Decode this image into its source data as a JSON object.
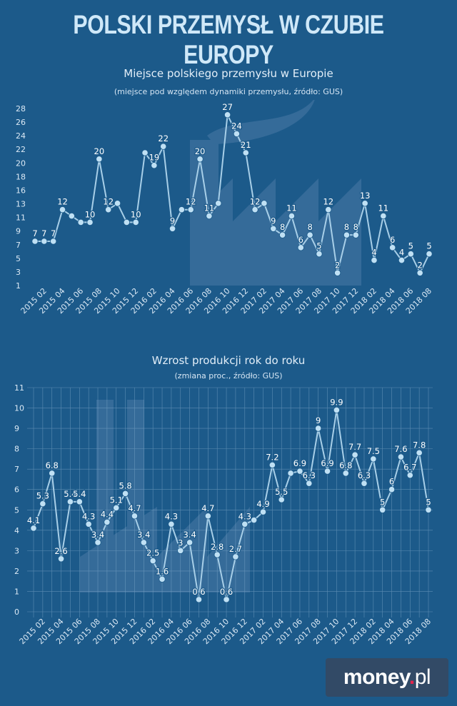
{
  "headline": "POLSKI PRZEMYSŁ W CZUBIE EUROPY",
  "brand": {
    "name": "money",
    "dot": ".",
    "tld": "pl"
  },
  "colors": {
    "background": "#1c5a8a",
    "line": "#a8cfe8",
    "marker": "#bfe0f4",
    "watermark": "#4a7aa6"
  },
  "chart_data": [
    {
      "type": "line",
      "title": "Miejsce polskiego przemysłu w Europie",
      "subtitle": "(miejsce pod względem dynamiki przemysłu, źródło: GUS)",
      "ylim": [
        0,
        28
      ],
      "y_ticks": [
        "28",
        "26",
        "24",
        "22",
        "20",
        "18",
        "16",
        "13",
        "11",
        "9",
        "7",
        "5",
        "3",
        "1"
      ],
      "x_tick_labels": [
        "2015 02",
        "2015 04",
        "2015 06",
        "2015 08",
        "2015 10",
        "2015 12",
        "2016 02",
        "2016 04",
        "2016 06",
        "2016 08",
        "2016 10",
        "2016 12",
        "2017 02",
        "2017 04",
        "2017 06",
        "2017 08",
        "2017 10",
        "2017 12",
        "2018 02",
        "2018 04",
        "2018 06",
        "2018 08"
      ],
      "grid": false,
      "values": [
        7,
        7,
        7,
        12,
        11,
        10,
        10,
        20,
        12,
        13,
        10,
        10,
        21,
        19,
        22,
        9,
        12,
        12,
        20,
        11,
        13,
        27,
        24,
        21,
        12,
        13,
        9,
        8,
        11,
        6,
        8,
        5,
        12,
        2,
        8,
        8,
        13,
        4,
        11,
        6,
        4,
        5,
        2,
        5
      ],
      "labels": [
        "7",
        "7",
        "7",
        "12",
        "",
        "",
        "10",
        "20",
        "12",
        "",
        "",
        "10",
        "",
        "19",
        "22",
        "9",
        "",
        "12",
        "20",
        "11",
        "",
        "27",
        "24",
        "21",
        "12",
        "",
        "9",
        "8",
        "11",
        "6",
        "8",
        "5",
        "12",
        "2",
        "8",
        "8",
        "13",
        "4",
        "11",
        "6",
        "4",
        "5",
        "2",
        "5"
      ]
    },
    {
      "type": "line",
      "title": "Wzrost produkcji rok do roku",
      "subtitle": "(zmiana proc., źródło: GUS)",
      "ylim": [
        0,
        11
      ],
      "y_ticks": [
        "11",
        "10",
        "9",
        "8",
        "7",
        "6",
        "5",
        "4",
        "3",
        "2",
        "1",
        "0"
      ],
      "x_tick_labels": [
        "2015 02",
        "2015 04",
        "2015 06",
        "2015 08",
        "2015 10",
        "2015 12",
        "2016 02",
        "2016 04",
        "2016 06",
        "2016 08",
        "2016 10",
        "2016 12",
        "2017 02",
        "2017 04",
        "2017 06",
        "2017 08",
        "2017 10",
        "2017 12",
        "2018 02",
        "2018 04",
        "2018 06",
        "2018 08"
      ],
      "grid": true,
      "values": [
        4.1,
        5.3,
        6.8,
        2.6,
        5.4,
        5.4,
        4.3,
        3.4,
        4.4,
        5.1,
        5.8,
        4.7,
        3.4,
        2.5,
        1.6,
        4.3,
        3.0,
        3.4,
        0.6,
        4.7,
        2.8,
        0.6,
        2.7,
        4.3,
        4.5,
        4.9,
        7.2,
        5.5,
        6.8,
        6.9,
        6.3,
        9.0,
        6.9,
        9.9,
        6.8,
        7.7,
        6.3,
        7.5,
        5.0,
        6.0,
        7.6,
        6.7,
        7.8,
        5.0
      ],
      "labels": [
        "4.1",
        "5.3",
        "6.8",
        "2.6",
        "5.4",
        "5.4",
        "4.3",
        "3.4",
        "4.4",
        "5.1",
        "5.8",
        "4.7",
        "3.4",
        "2.5",
        "1.6",
        "4.3",
        "3",
        "3.4",
        "0.6",
        "4.7",
        "2.8",
        "0.6",
        "2.7",
        "4.3",
        "",
        "4.9",
        "7.2",
        "5.5",
        "",
        "6.9",
        "6.3",
        "9",
        "6.9",
        "9.9",
        "6.8",
        "7.7",
        "6.3",
        "7.5",
        "5",
        "6",
        "7.6",
        "6.7",
        "7.8",
        "5"
      ]
    }
  ]
}
